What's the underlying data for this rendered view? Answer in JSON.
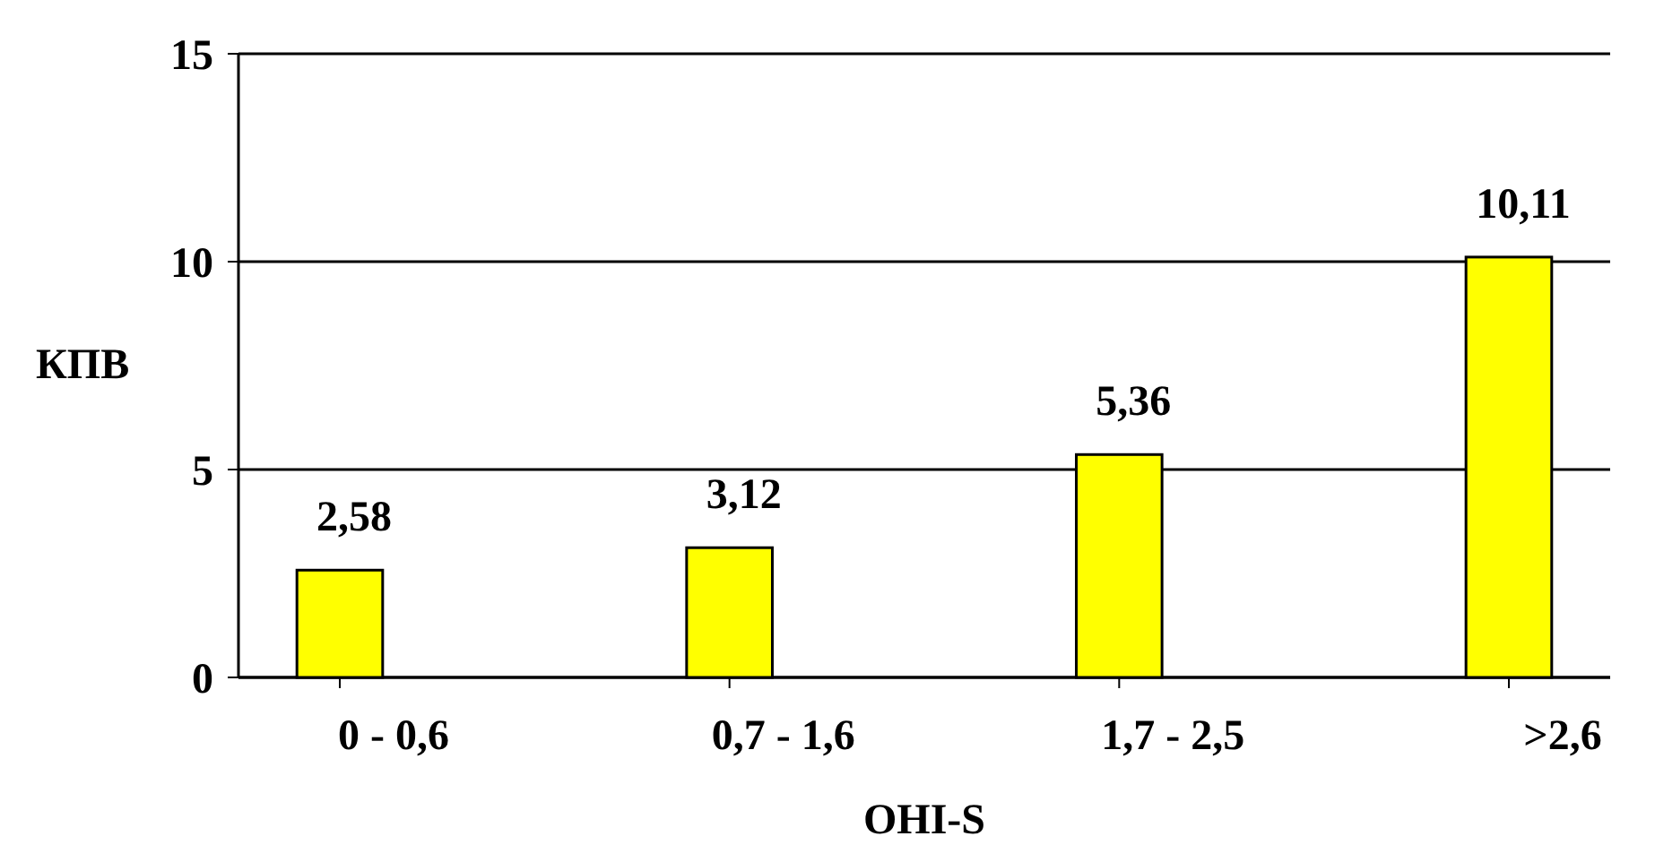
{
  "chart_data": {
    "type": "bar",
    "xlabel": "OHI-S",
    "ylabel": "КПВ",
    "categories": [
      "0 - 0,6",
      "0,7 - 1,6",
      "1,7 - 2,5",
      ">2,6"
    ],
    "values": [
      2.58,
      3.12,
      5.36,
      10.11
    ],
    "color": "#ffff00",
    "ylim": [
      0,
      15
    ],
    "yticks": [
      0,
      5,
      10,
      15
    ],
    "grid": "y",
    "value_labels": [
      "2,58",
      "3,12",
      "5,36",
      "10,11"
    ]
  }
}
